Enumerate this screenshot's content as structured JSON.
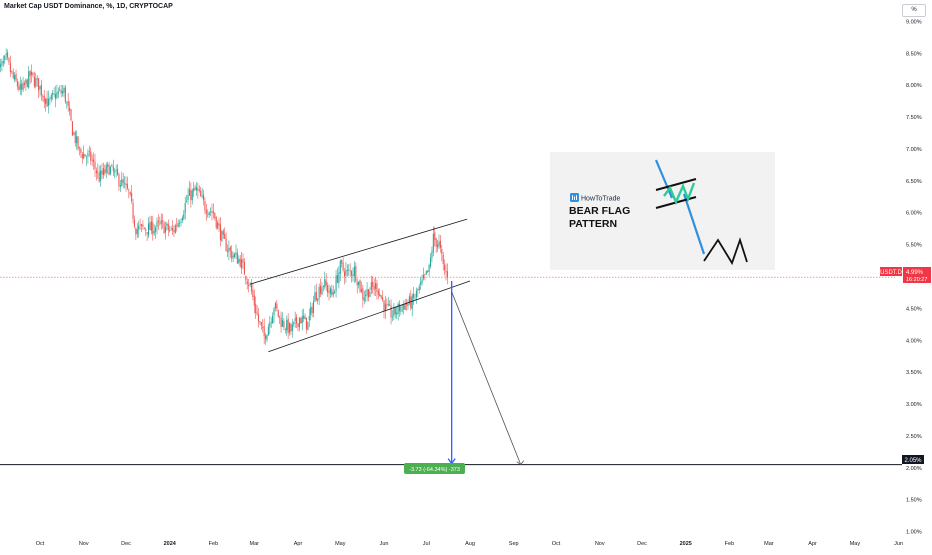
{
  "header": {
    "title": "Market Cap USDT Dominance, %, 1D, CRYPTOCAP",
    "currency_button": "%"
  },
  "colors": {
    "up": "#26a69a",
    "down": "#ef5350",
    "channel": "#131722",
    "projection_blue": "#2962ff",
    "projection_gray": "#555555",
    "badge_green": "#4caf50",
    "price_tag": "#f23645",
    "target_tag": "#131722",
    "inset_bg": "#f2f2f2",
    "inset_teal": "#2ecc9a",
    "inset_blue": "#2f8fe0"
  },
  "chart_data": {
    "type": "candlestick",
    "title": "Market Cap USDT Dominance, %, 1D, CRYPTOCAP",
    "y_unit": "%",
    "ylim": [
      0.9,
      9.1
    ],
    "y_ticks": [
      "9.00%",
      "8.50%",
      "8.00%",
      "7.50%",
      "7.00%",
      "6.50%",
      "6.00%",
      "5.50%",
      "5.00%",
      "4.50%",
      "4.00%",
      "3.50%",
      "3.00%",
      "2.50%",
      "2.00%",
      "1.50%",
      "1.00%"
    ],
    "x_ticks": [
      "Oct",
      "Nov",
      "Dec",
      "2024",
      "Feb",
      "Mar",
      "Apr",
      "May",
      "Jun",
      "Jul",
      "Aug",
      "Sep",
      "Oct",
      "Nov",
      "Dec",
      "2025",
      "Feb",
      "Mar",
      "Apr",
      "May",
      "Jun"
    ],
    "x_tick_bold": [
      "2024",
      "2025"
    ],
    "close_path": [
      [
        "2023-09-01",
        8.2
      ],
      [
        "2023-09-07",
        8.4
      ],
      [
        "2023-09-12",
        8.1
      ],
      [
        "2023-09-18",
        7.9
      ],
      [
        "2023-09-24",
        8.15
      ],
      [
        "2023-09-30",
        8.0
      ],
      [
        "2023-10-07",
        7.7
      ],
      [
        "2023-10-12",
        7.85
      ],
      [
        "2023-10-18",
        7.9
      ],
      [
        "2023-10-24",
        7.3
      ],
      [
        "2023-10-29",
        6.95
      ],
      [
        "2023-11-06",
        6.85
      ],
      [
        "2023-11-12",
        6.55
      ],
      [
        "2023-11-19",
        6.7
      ],
      [
        "2023-11-25",
        6.55
      ],
      [
        "2023-12-03",
        6.3
      ],
      [
        "2023-12-08",
        5.75
      ],
      [
        "2023-12-18",
        5.75
      ],
      [
        "2023-12-26",
        5.8
      ],
      [
        "2024-01-03",
        5.7
      ],
      [
        "2024-01-09",
        5.95
      ],
      [
        "2024-01-14",
        6.25
      ],
      [
        "2024-01-20",
        6.35
      ],
      [
        "2024-01-26",
        6.1
      ],
      [
        "2024-02-01",
        6.0
      ],
      [
        "2024-02-08",
        5.55
      ],
      [
        "2024-02-14",
        5.35
      ],
      [
        "2024-02-20",
        5.25
      ],
      [
        "2024-02-27",
        4.85
      ],
      [
        "2024-03-04",
        4.3
      ],
      [
        "2024-03-08",
        4.05
      ],
      [
        "2024-03-12",
        4.3
      ],
      [
        "2024-03-15",
        4.55
      ],
      [
        "2024-03-20",
        4.3
      ],
      [
        "2024-03-27",
        4.15
      ],
      [
        "2024-04-02",
        4.35
      ],
      [
        "2024-04-08",
        4.25
      ],
      [
        "2024-04-13",
        4.7
      ],
      [
        "2024-04-19",
        4.9
      ],
      [
        "2024-04-25",
        4.7
      ],
      [
        "2024-05-01",
        5.15
      ],
      [
        "2024-05-06",
        5.05
      ],
      [
        "2024-05-11",
        5.1
      ],
      [
        "2024-05-17",
        4.7
      ],
      [
        "2024-05-22",
        4.8
      ],
      [
        "2024-05-27",
        4.85
      ],
      [
        "2024-06-02",
        4.5
      ],
      [
        "2024-06-07",
        4.4
      ],
      [
        "2024-06-14",
        4.55
      ],
      [
        "2024-06-21",
        4.6
      ],
      [
        "2024-06-27",
        4.85
      ],
      [
        "2024-07-03",
        5.1
      ],
      [
        "2024-07-06",
        5.6
      ],
      [
        "2024-07-10",
        5.5
      ],
      [
        "2024-07-13",
        5.15
      ],
      [
        "2024-07-16",
        4.99
      ]
    ],
    "channel_upper": [
      [
        "2024-02-27",
        4.88
      ],
      [
        "2024-07-30",
        5.9
      ]
    ],
    "channel_lower": [
      [
        "2024-03-11",
        3.82
      ],
      [
        "2024-08-01",
        4.93
      ]
    ],
    "projection_vertical": {
      "date": "2024-07-19",
      "from": 4.93,
      "to": 2.05
    },
    "projection_diagonal": {
      "from": [
        "2024-07-19",
        4.76
      ],
      "to": [
        "2024-09-06",
        2.05
      ]
    },
    "target_level": 2.05,
    "target_label": "2.05%",
    "last_price": 4.99,
    "price_tag_symbol": "USDT.D",
    "price_tag_value": "4.99%",
    "price_tag_countdown": "16:20:27",
    "measure_label": "-3.73 (-64.34%) -373"
  },
  "inset": {
    "brand": "HowToTrade",
    "title_line1": "BEAR FLAG",
    "title_line2": "PATTERN"
  }
}
